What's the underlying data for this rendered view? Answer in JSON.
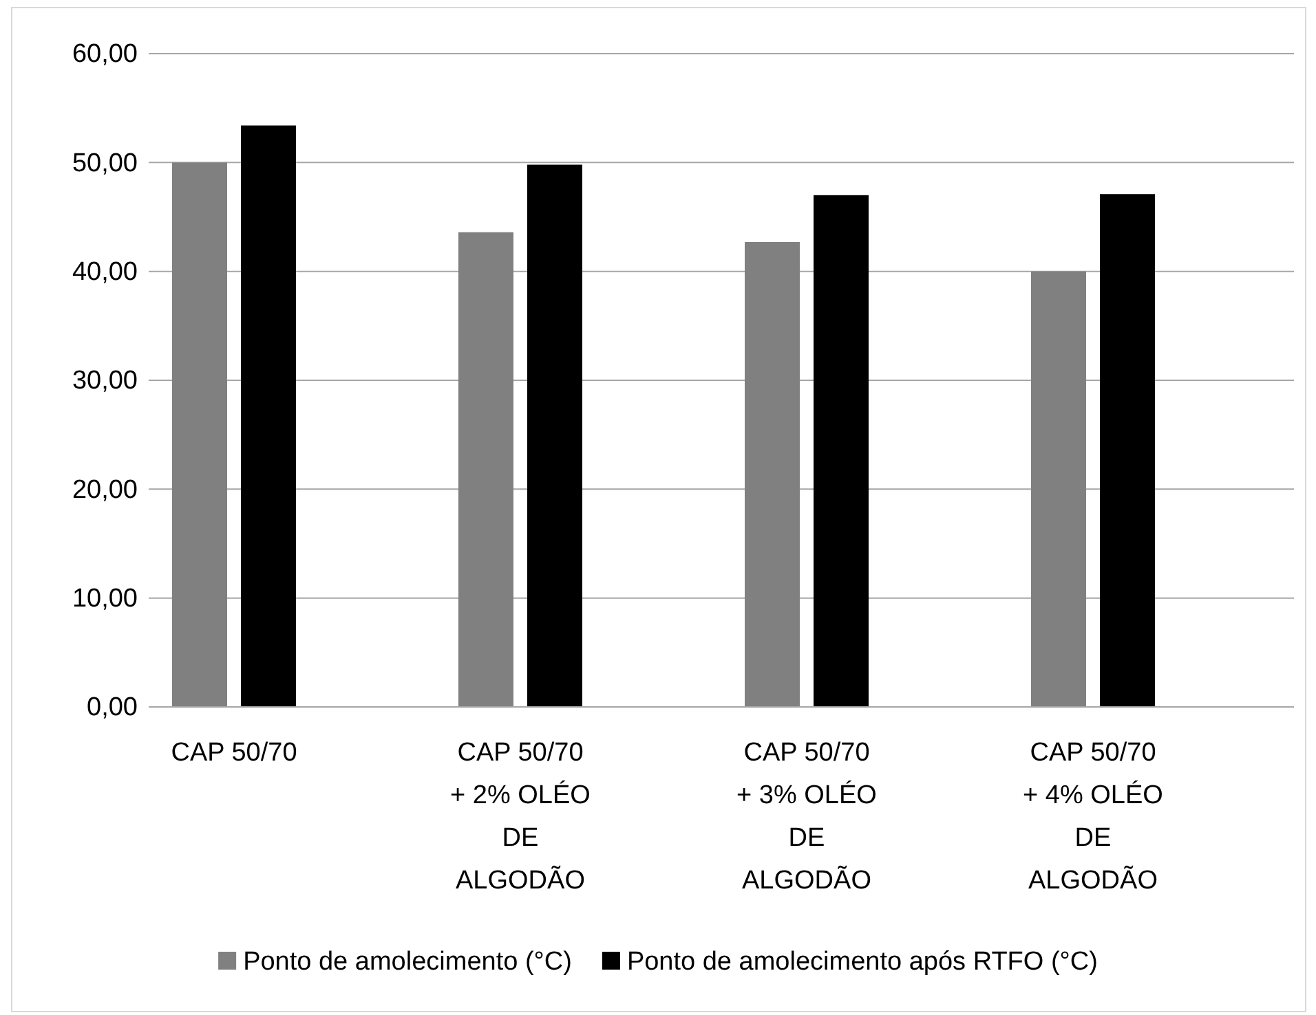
{
  "chart_data": {
    "type": "bar",
    "categories": [
      "CAP 50/70",
      "CAP 50/70 + 2% OLÉO DE ALGODÃO",
      "CAP 50/70 + 3% OLÉO DE ALGODÃO",
      "CAP 50/70 + 4% OLÉO DE ALGODÃO"
    ],
    "series": [
      {
        "name": "Ponto de amolecimento (°C)",
        "color": "#808080",
        "values": [
          50.0,
          43.6,
          42.7,
          40.0
        ]
      },
      {
        "name": "Ponto de amolecimento após RTFO (°C)",
        "color": "#000000",
        "values": [
          53.4,
          49.8,
          47.0,
          47.1
        ]
      }
    ],
    "ylim": [
      0,
      60
    ],
    "yticks": [
      {
        "value": 0,
        "label": "0,00"
      },
      {
        "value": 10,
        "label": "10,00"
      },
      {
        "value": 20,
        "label": "20,00"
      },
      {
        "value": 30,
        "label": "30,00"
      },
      {
        "value": 40,
        "label": "40,00"
      },
      {
        "value": 50,
        "label": "50,00"
      },
      {
        "value": 60,
        "label": "60,00"
      }
    ],
    "grid": "y",
    "legend": "bottom"
  }
}
